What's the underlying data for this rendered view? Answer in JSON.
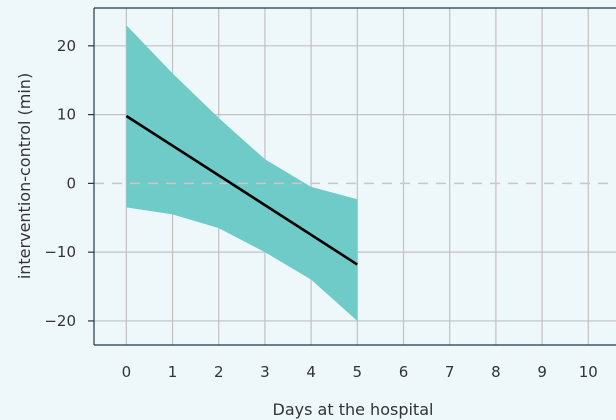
{
  "colors": {
    "background": "#eef7fa",
    "grid": "#c2c2c2",
    "band": "#6ecbc8",
    "line": "#000000",
    "zero_line": "#c8c8c8",
    "axis": "#1e3a4a"
  },
  "chart_data": {
    "type": "line",
    "title": "",
    "xlabel": "Days at the hospital",
    "ylabel": "intervention-control (min)",
    "xlim": [
      -0.7,
      10.6
    ],
    "ylim": [
      -23.5,
      25.5
    ],
    "xticks": [
      0,
      1,
      2,
      3,
      4,
      5,
      6,
      7,
      8,
      9,
      10
    ],
    "yticks": [
      20,
      10,
      0,
      -10,
      -20
    ],
    "grid": true,
    "reference_line": {
      "y": 0,
      "style": "dashed"
    },
    "series": [
      {
        "type": "line",
        "x": [
          0,
          5
        ],
        "y": [
          9.8,
          -11.8
        ]
      },
      {
        "type": "band",
        "x": [
          0,
          1,
          2,
          3,
          4,
          5
        ],
        "lower": [
          -3.5,
          -4.5,
          -6.5,
          -10.0,
          -14.0,
          -20.0
        ],
        "upper": [
          23.0,
          16.0,
          9.5,
          3.5,
          -0.5,
          -2.3
        ]
      }
    ]
  }
}
